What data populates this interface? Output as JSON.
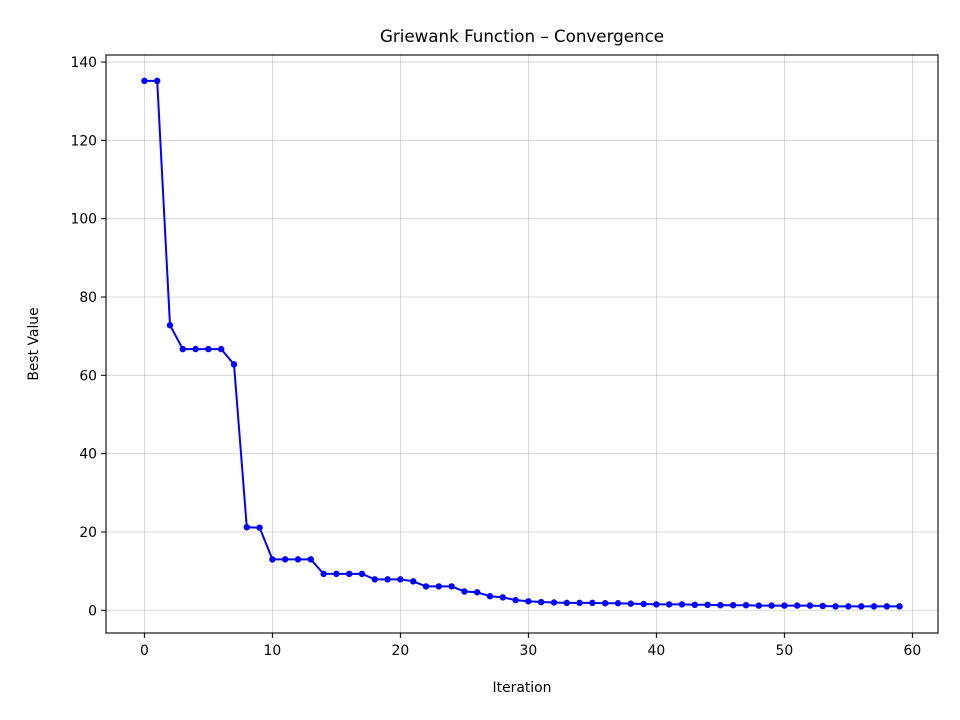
{
  "chart_data": {
    "type": "line",
    "title": "Griewank Function – Convergence",
    "xlabel": "Iteration",
    "ylabel": "Best Value",
    "xlim": [
      -3,
      62
    ],
    "ylim": [
      -5.8,
      141.8
    ],
    "xticks": [
      0,
      10,
      20,
      30,
      40,
      50,
      60
    ],
    "yticks": [
      0,
      20,
      40,
      60,
      80,
      100,
      120,
      140
    ],
    "grid": true,
    "series": [
      {
        "color": "#0000ff",
        "marker": "circle",
        "x": [
          0,
          1,
          2,
          3,
          4,
          5,
          6,
          7,
          8,
          9,
          10,
          11,
          12,
          13,
          14,
          15,
          16,
          17,
          18,
          19,
          20,
          21,
          22,
          23,
          24,
          25,
          26,
          27,
          28,
          29,
          30,
          31,
          32,
          33,
          34,
          35,
          36,
          37,
          38,
          39,
          40,
          41,
          42,
          43,
          44,
          45,
          46,
          47,
          48,
          49,
          50,
          51,
          52,
          53,
          54,
          55,
          56,
          57,
          58,
          59
        ],
        "values": [
          135.2,
          135.2,
          72.8,
          66.7,
          66.7,
          66.7,
          66.7,
          62.8,
          21.2,
          21.1,
          13.0,
          13.0,
          13.0,
          13.0,
          9.3,
          9.3,
          9.3,
          9.3,
          7.9,
          7.9,
          7.9,
          7.4,
          6.1,
          6.1,
          6.1,
          4.8,
          4.6,
          3.6,
          3.3,
          2.6,
          2.3,
          2.1,
          2.0,
          1.9,
          1.9,
          1.9,
          1.8,
          1.8,
          1.7,
          1.6,
          1.5,
          1.5,
          1.5,
          1.4,
          1.4,
          1.3,
          1.3,
          1.3,
          1.2,
          1.2,
          1.2,
          1.2,
          1.2,
          1.1,
          1.0,
          1.0,
          1.0,
          1.0,
          1.0,
          1.0
        ]
      }
    ]
  }
}
